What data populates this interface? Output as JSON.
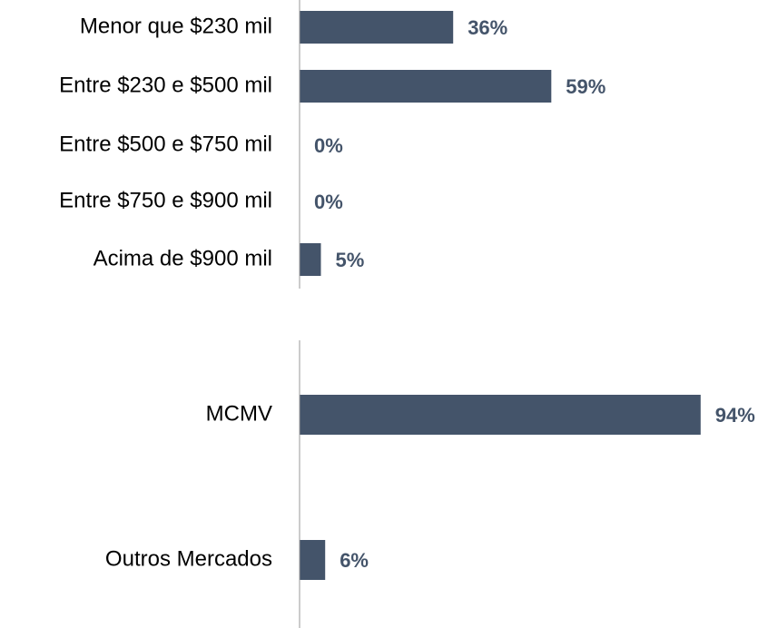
{
  "chart_data": [
    {
      "type": "barh",
      "categories": [
        "Menor que $230 mil",
        "Entre $230 e $500 mil",
        "Entre $500 e $750 mil",
        "Entre $750 e $900 mil",
        "Acima de $900 mil"
      ],
      "values": [
        36,
        59,
        0,
        0,
        5
      ],
      "value_labels": [
        "36%",
        "59%",
        "0%",
        "0%",
        "5%"
      ],
      "color": "#44546a",
      "xlim": [
        0,
        100
      ]
    },
    {
      "type": "barh",
      "categories": [
        "MCMV",
        "Outros Mercados"
      ],
      "values": [
        94,
        6
      ],
      "value_labels": [
        "94%",
        "6%"
      ],
      "color": "#44546a",
      "xlim": [
        0,
        100
      ]
    }
  ]
}
